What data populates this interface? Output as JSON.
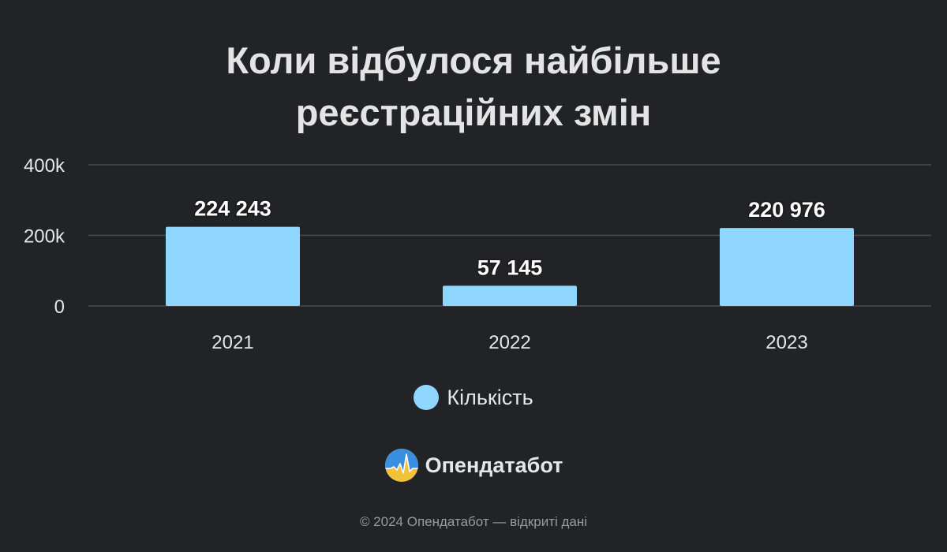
{
  "title_lines": [
    "Коли відбулося найбільше",
    "реєстраційних змін"
  ],
  "chart_data": {
    "type": "bar",
    "title": "Коли відбулося найбільше реєстраційних змін",
    "categories": [
      "2021",
      "2022",
      "2023"
    ],
    "series": [
      {
        "name": "Кількість",
        "values": [
          224243,
          57145,
          220976
        ],
        "labels": [
          "224 243",
          "57 145",
          "220 976"
        ],
        "color": "#8fd7ff"
      }
    ],
    "ylim": [
      0,
      400000
    ],
    "yticks": [
      {
        "value": 0,
        "label": "0"
      },
      {
        "value": 200000,
        "label": "200k"
      },
      {
        "value": 400000,
        "label": "400k"
      }
    ],
    "grid": true,
    "legend_position": "bottom-center"
  },
  "legend": {
    "label": "Кількість",
    "color": "#8fd7ff"
  },
  "brand": {
    "name": "Опендатабот"
  },
  "footer": {
    "text": "© 2024 Опендатабот — відкриті дані"
  }
}
